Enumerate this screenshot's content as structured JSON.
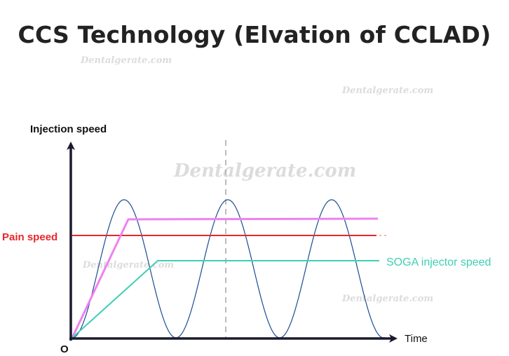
{
  "title": "CCS Technology (Elvation of CCLAD)",
  "watermark": "Dentalgerate.com",
  "axes": {
    "y_label": "Injection speed",
    "x_label": "Time",
    "origin_label": "O"
  },
  "series": {
    "pain_speed": {
      "label": "Pain speed",
      "color": "#e8262b"
    },
    "soga_speed": {
      "label": "SOGA injector speed",
      "color": "#3ecfb5"
    },
    "pressure_limit": {
      "color": "#ee82ee"
    },
    "wave": {
      "color": "#1a4e93"
    }
  },
  "colors": {
    "axis": "#1a1a2e",
    "divider": "#bbbbbb"
  }
}
